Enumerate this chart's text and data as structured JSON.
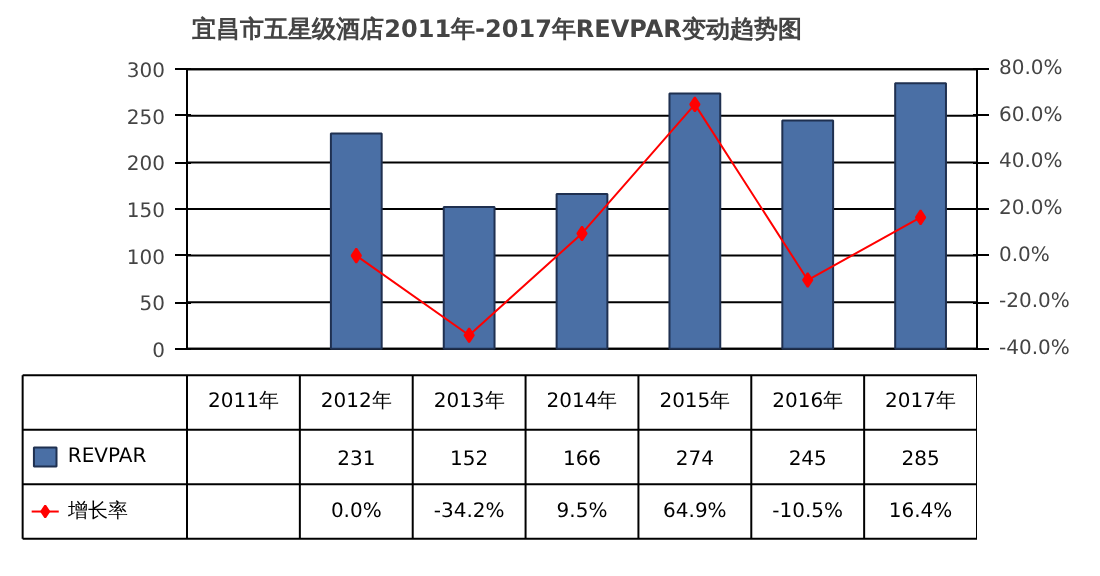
{
  "chart_data": {
    "type": "bar",
    "title": "宜昌市五星级酒店2011年-2017年REVPAR变动趋势图",
    "categories": [
      "2011年",
      "2012年",
      "2013年",
      "2014年",
      "2015年",
      "2016年",
      "2017年"
    ],
    "series": [
      {
        "name": "REVPAR",
        "color": "#4a6fa5",
        "values": [
          null,
          231,
          152,
          166,
          274,
          245,
          285
        ],
        "value_labels": [
          null,
          "231",
          "152",
          "166",
          "274",
          "245",
          "285"
        ]
      },
      {
        "name": "增长率",
        "type": "line",
        "axis": "y2",
        "color": "#ff0000",
        "marker": "diamond",
        "values": [
          null,
          0.0,
          -34.2,
          9.5,
          64.9,
          -10.5,
          16.4
        ],
        "value_labels": [
          null,
          "0.0%",
          "-34.2%",
          "9.5%",
          "64.9%",
          "-10.5%",
          "16.4%"
        ]
      }
    ],
    "ylim": [
      0,
      300
    ],
    "yticks": [
      0,
      50,
      100,
      150,
      200,
      250,
      300
    ],
    "y2lim": [
      -40,
      80
    ],
    "y2ticks": [
      {
        "value": -40,
        "label": "-40.0%"
      },
      {
        "value": -20,
        "label": "-20.0%"
      },
      {
        "value": 0,
        "label": "0.0%"
      },
      {
        "value": 20,
        "label": "20.0%"
      },
      {
        "value": 40,
        "label": "40.0%"
      },
      {
        "value": 60,
        "label": "60.0%"
      },
      {
        "value": 80,
        "label": "80.0%"
      }
    ],
    "grid": "y",
    "legend": "bottom left"
  }
}
